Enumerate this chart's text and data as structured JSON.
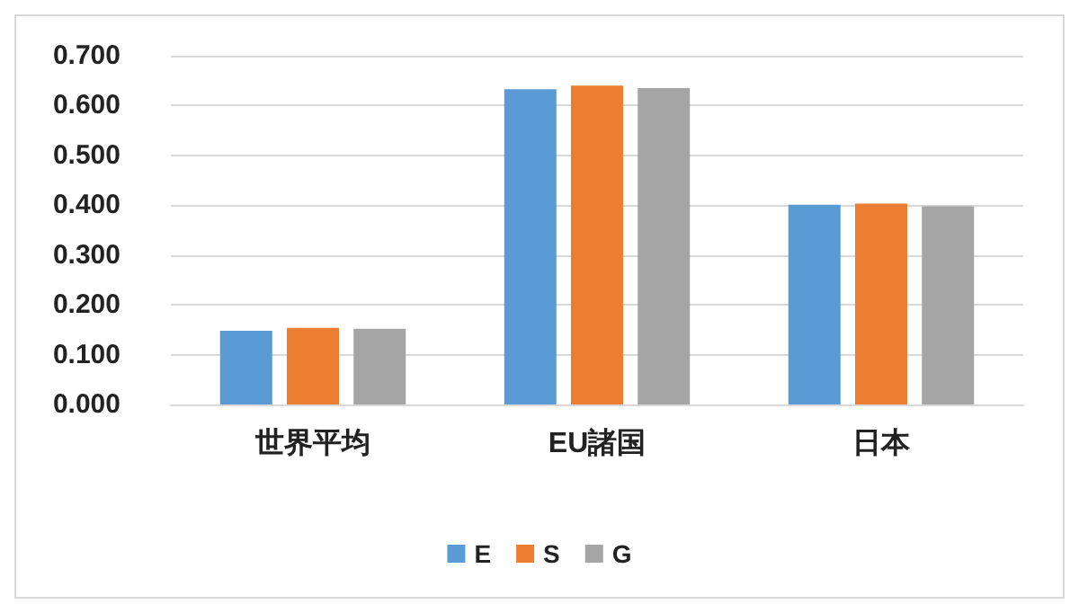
{
  "chart_data": {
    "type": "bar",
    "categories": [
      "世界平均",
      "EU諸国",
      "日本"
    ],
    "series": [
      {
        "name": "E",
        "color": "#5b9bd5",
        "values": [
          0.148,
          0.633,
          0.401
        ]
      },
      {
        "name": "S",
        "color": "#ed7d31",
        "values": [
          0.154,
          0.64,
          0.403
        ]
      },
      {
        "name": "G",
        "color": "#a5a5a5",
        "values": [
          0.152,
          0.635,
          0.398
        ]
      }
    ],
    "ylim": [
      0,
      0.7
    ],
    "yticks": [
      {
        "value": 0,
        "label": "0.000"
      },
      {
        "value": 0.1,
        "label": "0.100"
      },
      {
        "value": 0.2,
        "label": "0.200"
      },
      {
        "value": 0.3,
        "label": "0.300"
      },
      {
        "value": 0.4,
        "label": "0.400"
      },
      {
        "value": 0.5,
        "label": "0.500"
      },
      {
        "value": 0.6,
        "label": "0.600"
      },
      {
        "value": 0.7,
        "label": "0.700"
      }
    ],
    "grid": "y",
    "legend": "bottom"
  }
}
